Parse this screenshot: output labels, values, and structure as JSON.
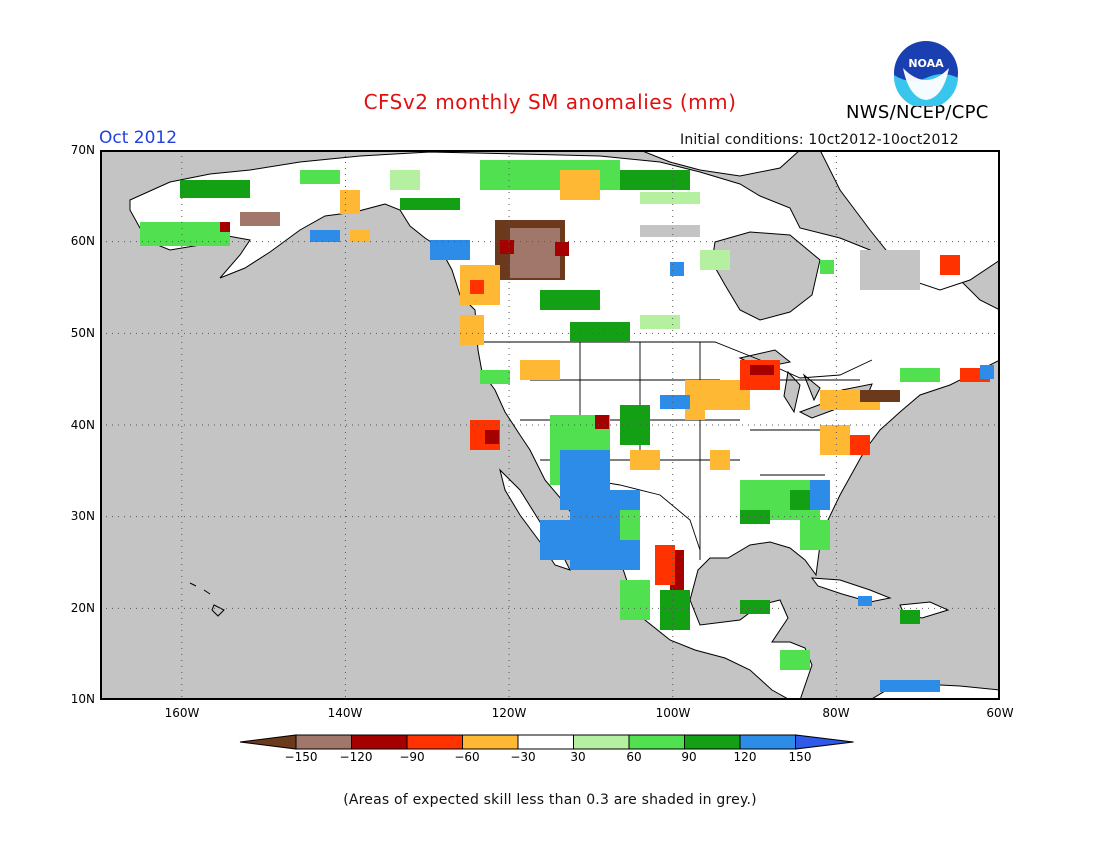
{
  "title": "CFSv2 monthly SM anomalies (mm)",
  "agency": "NWS/NCEP/CPC",
  "logo_text": "NOAA",
  "month": "Oct 2012",
  "initial_conditions": "Initial conditions: 10ct2012-10oct2012",
  "lat_labels": [
    "70N",
    "60N",
    "50N",
    "40N",
    "30N",
    "20N",
    "10N"
  ],
  "lon_labels": [
    "160W",
    "140W",
    "120W",
    "100W",
    "80W",
    "60W"
  ],
  "colorbar": {
    "labels": [
      "−150",
      "−120",
      "−90",
      "−60",
      "−30",
      "30",
      "60",
      "90",
      "120",
      "150"
    ],
    "colors": [
      "#6b3a1c",
      "#a0776a",
      "#a40000",
      "#ff3200",
      "#ffb834",
      "#ffffff",
      "#b4f0a0",
      "#50e050",
      "#14a014",
      "#2d8ce8",
      "#2d5ae8"
    ]
  },
  "note": "(Areas of expected skill less than 0.3 are shaded in grey.)",
  "colors": {
    "ocean": "#c4c4c4",
    "land": "#ffffff",
    "title": "#e01010",
    "month": "#2040e0"
  }
}
